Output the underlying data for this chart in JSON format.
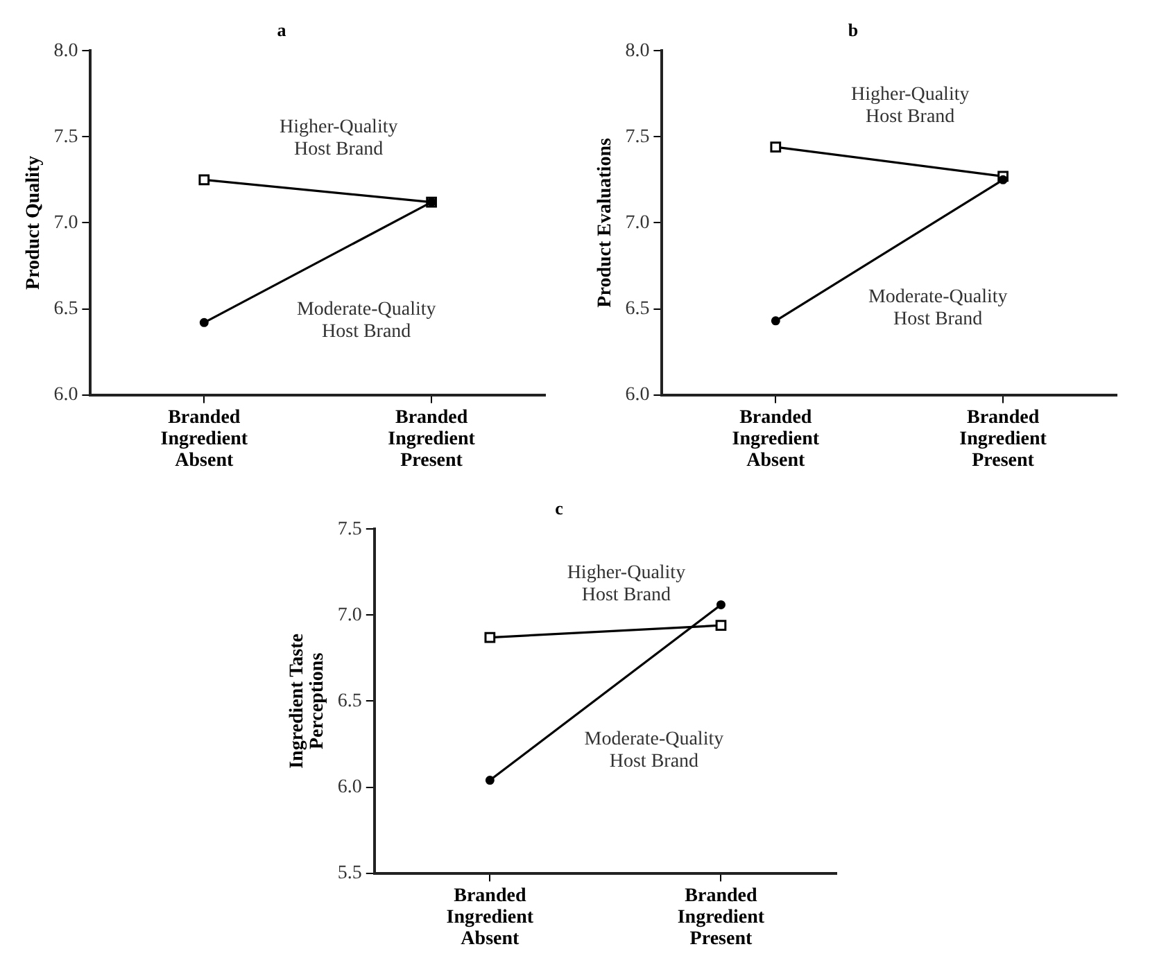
{
  "chart_data": [
    {
      "type": "line",
      "title": "a",
      "ylabel": "Product Quality",
      "categories": [
        "Branded Ingredient Absent",
        "Branded Ingredient Present"
      ],
      "series": [
        {
          "name": "Higher-Quality Host Brand",
          "color": "#000000",
          "marker": "square",
          "values": [
            7.25,
            7.12
          ]
        },
        {
          "name": "Moderate-Quality Host Brand",
          "color": "#000000",
          "marker": "circle",
          "values": [
            6.42,
            7.12
          ]
        }
      ],
      "ylim": [
        6,
        8
      ],
      "yticks": [
        {
          "value": 6,
          "label": "6.0"
        },
        {
          "value": 6.5,
          "label": "6.5"
        },
        {
          "value": 7,
          "label": "7.0"
        },
        {
          "value": 7.5,
          "label": "7.5"
        },
        {
          "value": 8,
          "label": "8.0"
        }
      ],
      "grid": false,
      "legend": false
    },
    {
      "type": "line",
      "title": "b",
      "ylabel": "Product Evaluations",
      "categories": [
        "Branded Ingredient Absent",
        "Branded Ingredient Present"
      ],
      "series": [
        {
          "name": "Higher-Quality Host Brand",
          "color": "#000000",
          "marker": "square",
          "values": [
            7.44,
            7.27
          ]
        },
        {
          "name": "Moderate-Quality Host Brand",
          "color": "#000000",
          "marker": "circle",
          "values": [
            6.43,
            7.25
          ]
        }
      ],
      "ylim": [
        6,
        8
      ],
      "yticks": [
        {
          "value": 6,
          "label": "6.0"
        },
        {
          "value": 6.5,
          "label": "6.5"
        },
        {
          "value": 7,
          "label": "7.0"
        },
        {
          "value": 7.5,
          "label": "7.5"
        },
        {
          "value": 8,
          "label": "8.0"
        }
      ],
      "grid": false,
      "legend": false
    },
    {
      "type": "line",
      "title": "c",
      "ylabel": "Ingredient Taste Perceptions",
      "categories": [
        "Branded Ingredient Absent",
        "Branded Ingredient Present"
      ],
      "series": [
        {
          "name": "Higher-Quality Host Brand",
          "color": "#000000",
          "marker": "square",
          "values": [
            6.87,
            6.94
          ]
        },
        {
          "name": "Moderate-Quality Host Brand",
          "color": "#000000",
          "marker": "circle",
          "values": [
            6.04,
            7.06
          ]
        }
      ],
      "ylim": [
        5.5,
        7.5
      ],
      "yticks": [
        {
          "value": 5.5,
          "label": "5.5"
        },
        {
          "value": 6,
          "label": "6.0"
        },
        {
          "value": 6.5,
          "label": "6.5"
        },
        {
          "value": 7,
          "label": "7.0"
        },
        {
          "value": 7.5,
          "label": "7.5"
        }
      ],
      "grid": false,
      "legend": false
    }
  ]
}
